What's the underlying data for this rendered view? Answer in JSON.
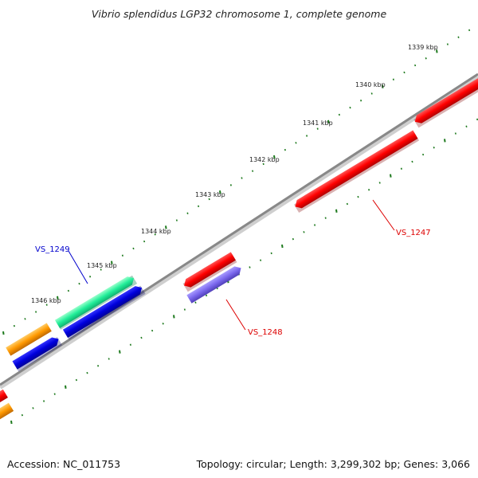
{
  "title": "Vibrio splendidus LGP32 chromosome 1, complete genome",
  "footer": {
    "accession": "Accession: NC_011753",
    "summary": "Topology: circular; Length: 3,299,302 bp; Genes: 3,066"
  },
  "ruler_labels": [
    "1339 kbp",
    "1340 kbp",
    "1341 kbp",
    "1342 kbp",
    "1343 kbp",
    "1344 kbp",
    "1345 kbp",
    "1346 kbp"
  ],
  "gene_labels": {
    "vs1249": "VS_1249",
    "vs1248": "VS_1248",
    "vs1247": "VS_1247"
  },
  "colors": {
    "backbone": "#888888",
    "tick": "#1e7a1e",
    "red": "#ff0000",
    "blue": "#0000dd",
    "teal": "#22ee99",
    "orange": "#ff9900",
    "slate": "#7b68ee",
    "label_red": "#dd0000",
    "label_blue": "#0000cc"
  }
}
